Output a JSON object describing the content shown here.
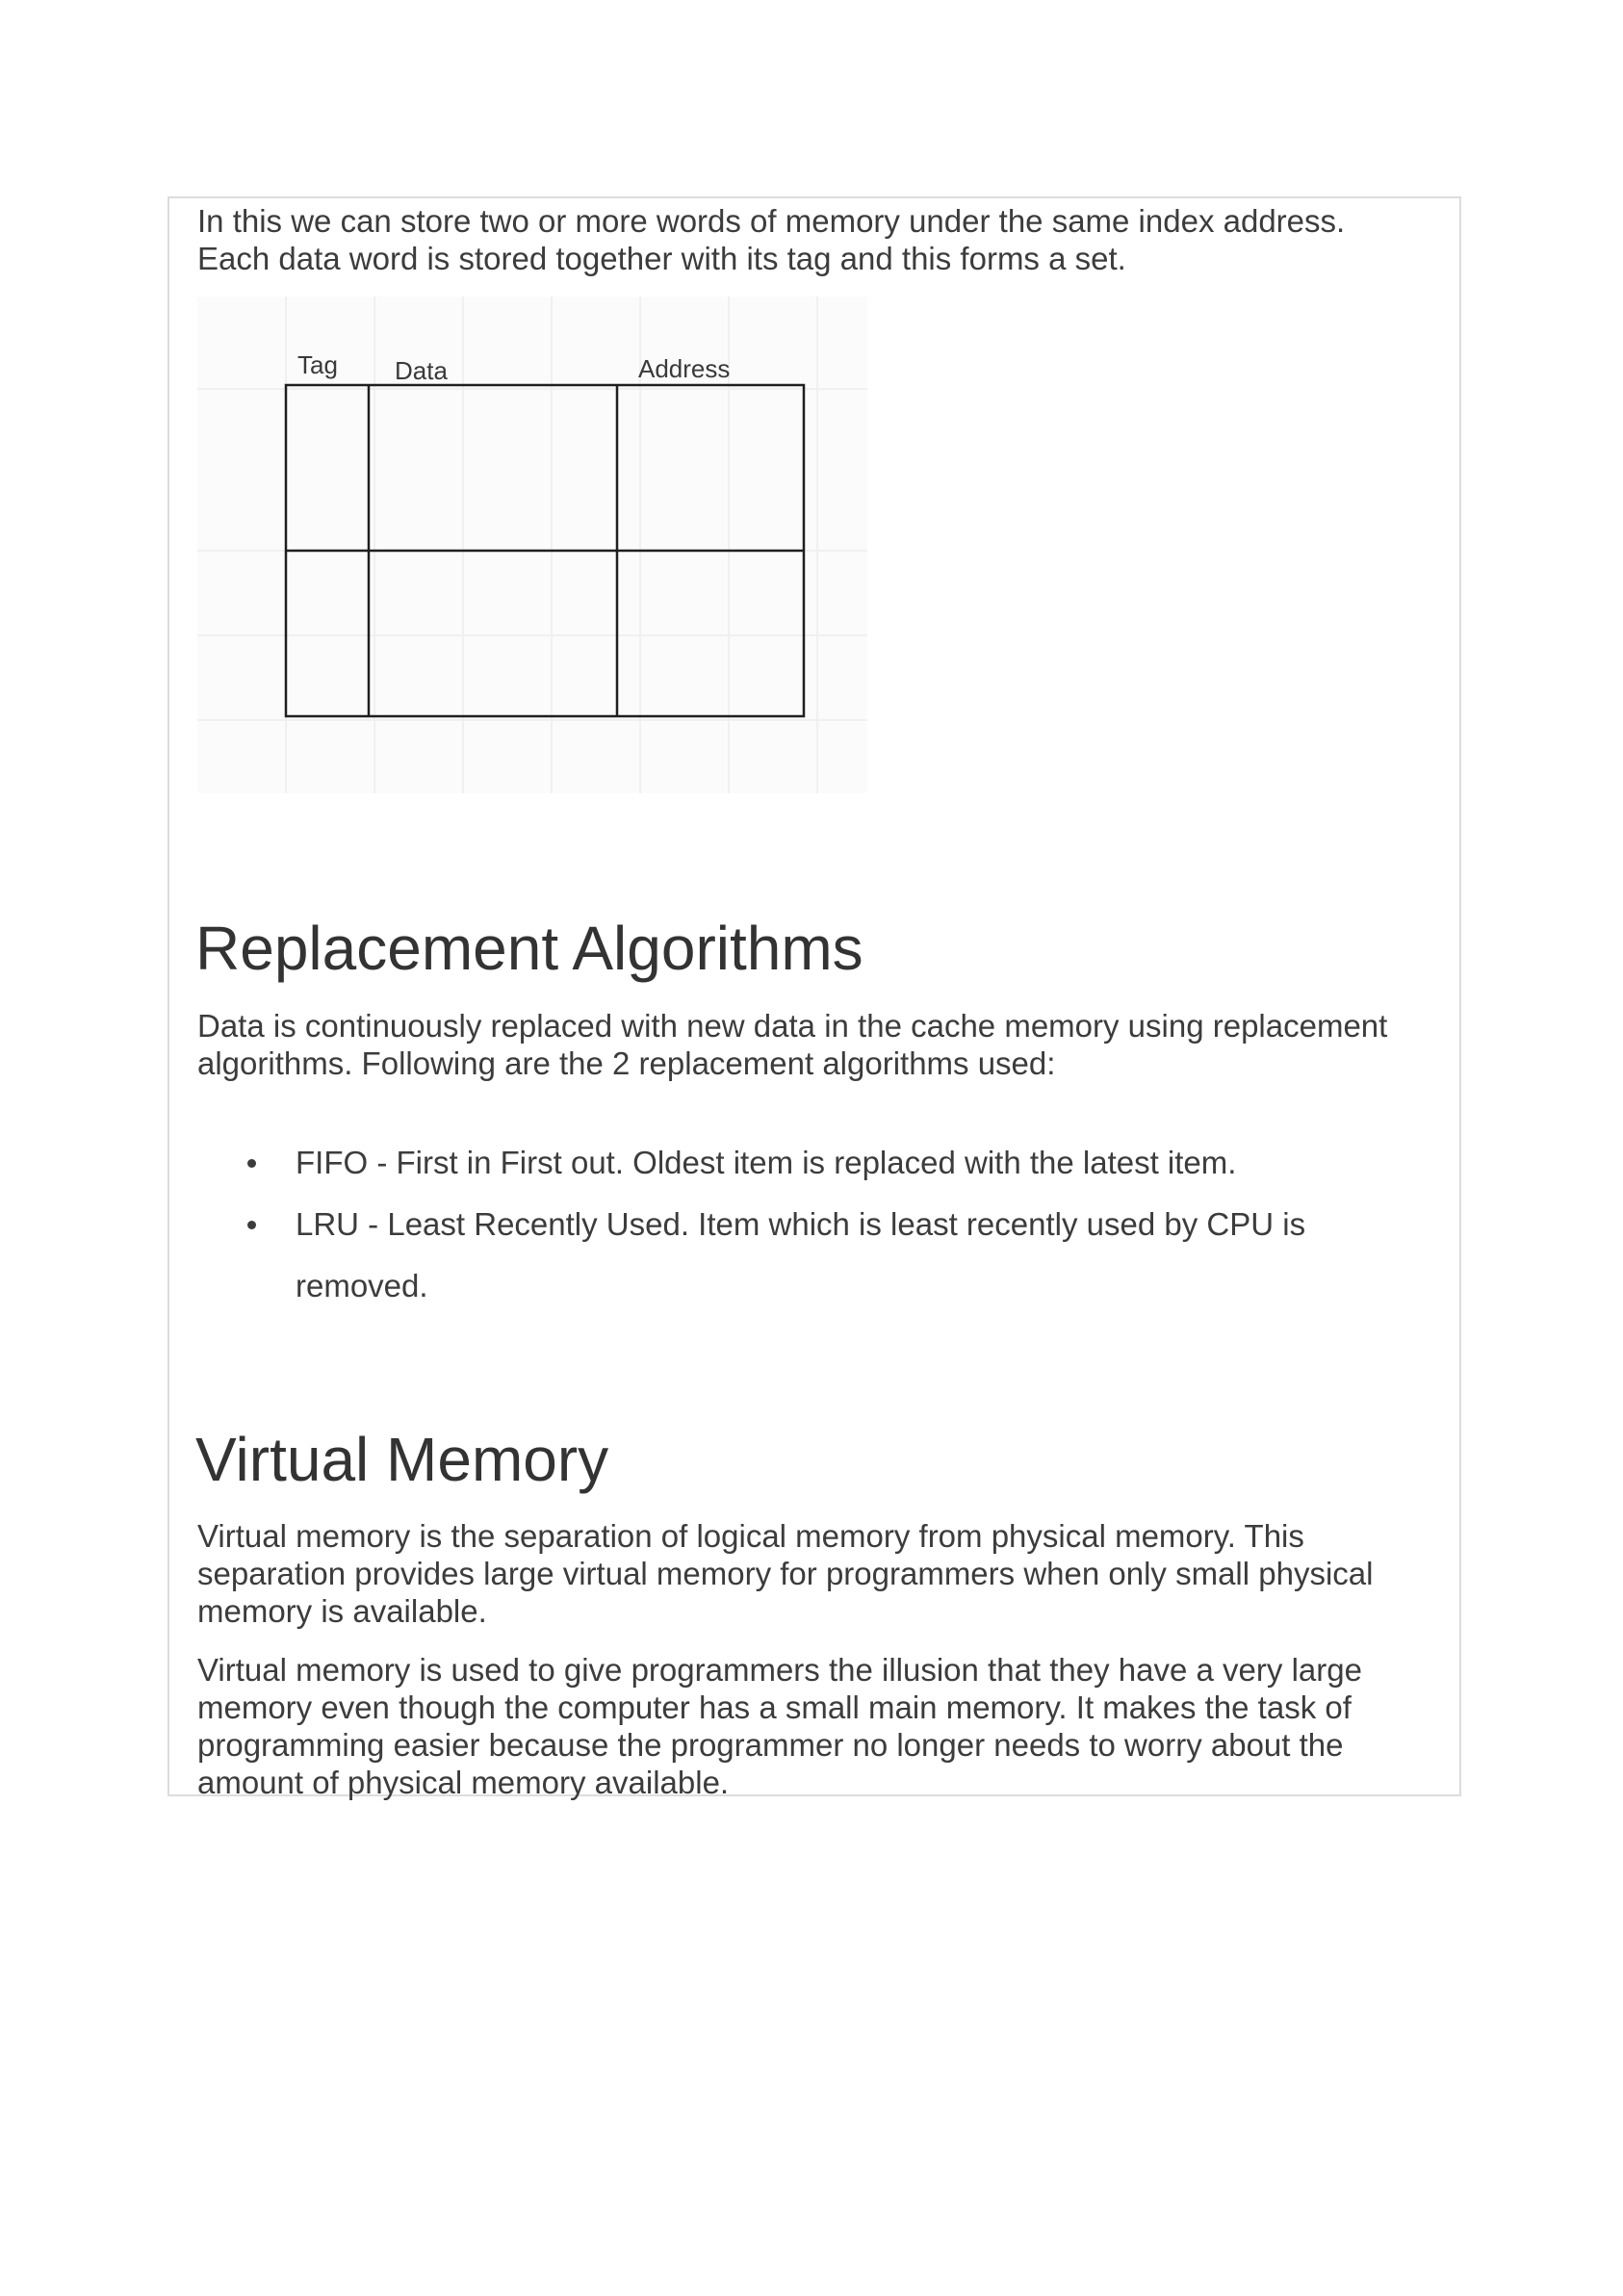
{
  "intro": {
    "line1": "In this we can store two or more words of memory under the same index address.",
    "line2": "Each data word is stored together with its tag and this forms a set."
  },
  "diagram": {
    "labels": {
      "tag": "Tag",
      "data": "Data",
      "address": "Address"
    }
  },
  "replacement": {
    "heading": "Replacement Algorithms",
    "paragraph": "Data is continuously replaced with new data in the cache memory using replacement algorithms. Following are the 2 replacement algorithms used:",
    "items": [
      "FIFO - First in First out. Oldest item is replaced with the latest item.",
      "LRU - Least Recently Used. Item which is least recently used by CPU is removed."
    ]
  },
  "virtual": {
    "heading": "Virtual Memory",
    "paragraph1": "Virtual memory is the separation of logical memory from physical memory. This separation provides large virtual memory for programmers when only small physical memory is available.",
    "paragraph2": "Virtual memory is used to give programmers the illusion that they have a very large memory even though the computer has a small main memory. It makes the task of programming easier because the programmer no longer needs to worry about the amount of physical memory available."
  }
}
